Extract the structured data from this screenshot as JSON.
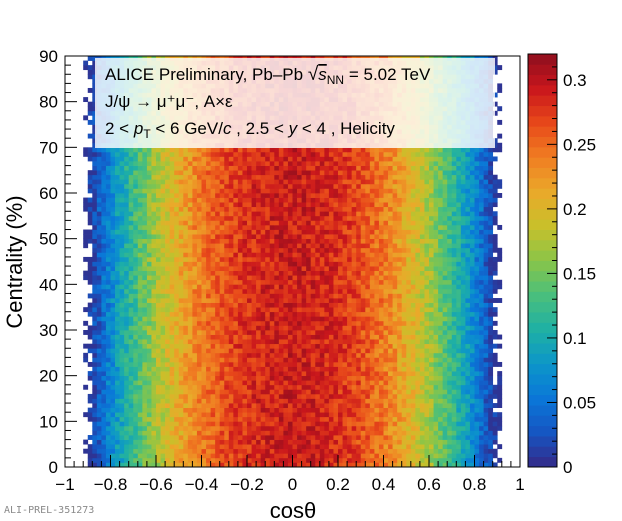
{
  "chart_data": {
    "type": "heatmap",
    "title_lines": [
      "ALICE Preliminary, Pb–Pb √s_NN = 5.02 TeV",
      "J/ψ → μ⁺μ⁻, A×ε",
      "2 < p_T < 6 GeV/c , 2.5 < y < 4 , Helicity"
    ],
    "legend": {
      "line1": {
        "prefix": "ALICE Preliminary, Pb–Pb ",
        "sqrt": "s",
        "sub": "NN",
        "suffix": " = 5.02 TeV"
      },
      "line2": "J/ψ → μ⁺μ⁻, A×ε",
      "line3": {
        "a": "2 < ",
        "p": "p",
        "sub": "T",
        "b": " < 6 GeV/",
        "c": "c",
        "d": " , 2.5 < ",
        "y": "y",
        "e": " < 4 , Helicity"
      }
    },
    "xlabel": "cosθ",
    "ylabel": "Centrality (%)",
    "xlim": [
      -1,
      1
    ],
    "ylim": [
      0,
      90
    ],
    "x_ticks": [
      "−1",
      "−0.8",
      "−0.6",
      "−0.4",
      "−0.2",
      "0",
      "0.2",
      "0.4",
      "0.6",
      "0.8",
      "1"
    ],
    "y_ticks": [
      "0",
      "10",
      "20",
      "30",
      "40",
      "50",
      "60",
      "70",
      "80",
      "90"
    ],
    "z_range": [
      0,
      0.32
    ],
    "z_ticks": [
      "0",
      "0.05",
      "0.1",
      "0.15",
      "0.2",
      "0.25",
      "0.3"
    ],
    "bins": {
      "x": 100,
      "y": 90
    },
    "acceptance_edge": 0.9,
    "peak_value": 0.29,
    "profile_description": "A×ε roughly independent of centrality; maximum near cosθ = 0, falling to zero at |cosθ| ≈ 0.9",
    "palette": [
      "#352a87",
      "#1655c2",
      "#0a77d8",
      "#0c96c9",
      "#1fb0a4",
      "#4abf7c",
      "#8ac548",
      "#c8c02a",
      "#eaa92a",
      "#f07e22",
      "#e8491a",
      "#c9161c",
      "#8e0f1e"
    ]
  },
  "footer": {
    "id": "ALI-PREL-351273"
  }
}
